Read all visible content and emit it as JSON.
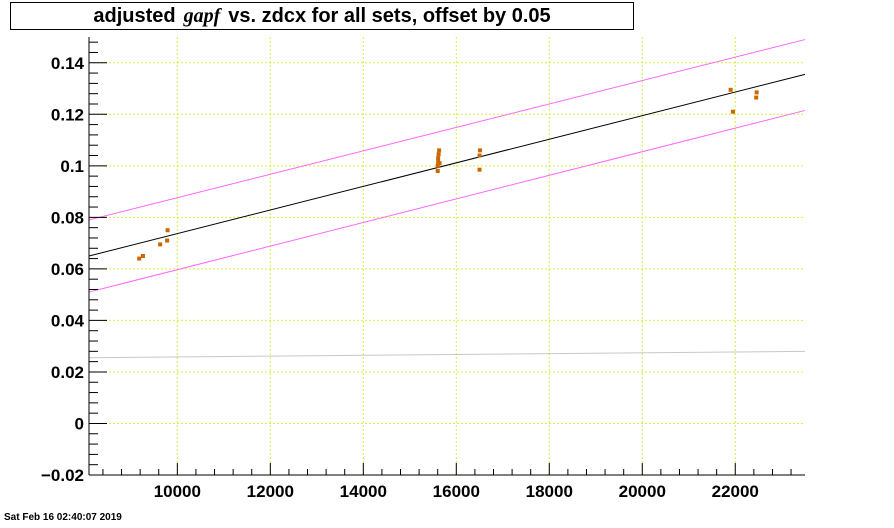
{
  "title": {
    "prefix": "adjusted",
    "italic": "gapf",
    "suffix": "vs. zdcx for all sets, offset by 0.05"
  },
  "footer": "Sat Feb 16 02:40:07 2019",
  "colors": {
    "grid": "#d4f03c",
    "fit": "#000000",
    "band": "#ff66ff",
    "reference": "#c8c8c8",
    "points": "#cc6600"
  },
  "chart_data": {
    "type": "scatter",
    "xlim": [
      8100,
      23500
    ],
    "ylim": [
      -0.02,
      0.15
    ],
    "grid": true,
    "x_ticks": [
      {
        "value": 10000,
        "label": "10000"
      },
      {
        "value": 12000,
        "label": "12000"
      },
      {
        "value": 14000,
        "label": "14000"
      },
      {
        "value": 16000,
        "label": "16000"
      },
      {
        "value": 18000,
        "label": "18000"
      },
      {
        "value": 20000,
        "label": "20000"
      },
      {
        "value": 22000,
        "label": "22000"
      }
    ],
    "y_ticks": [
      {
        "value": -0.02,
        "label": "−0.02"
      },
      {
        "value": 0,
        "label": "0"
      },
      {
        "value": 0.02,
        "label": "0.02"
      },
      {
        "value": 0.04,
        "label": "0.04"
      },
      {
        "value": 0.06,
        "label": "0.06"
      },
      {
        "value": 0.08,
        "label": "0.08"
      },
      {
        "value": 0.1,
        "label": "0.1"
      },
      {
        "value": 0.12,
        "label": "0.12"
      },
      {
        "value": 0.14,
        "label": "0.14"
      }
    ],
    "points": [
      {
        "x": 9180,
        "y": 0.064
      },
      {
        "x": 9260,
        "y": 0.065
      },
      {
        "x": 9630,
        "y": 0.0695
      },
      {
        "x": 9780,
        "y": 0.071
      },
      {
        "x": 9790,
        "y": 0.075
      },
      {
        "x": 15600,
        "y": 0.098
      },
      {
        "x": 15600,
        "y": 0.1
      },
      {
        "x": 15610,
        "y": 0.1015
      },
      {
        "x": 15610,
        "y": 0.103
      },
      {
        "x": 15620,
        "y": 0.1045
      },
      {
        "x": 15630,
        "y": 0.106
      },
      {
        "x": 15640,
        "y": 0.101
      },
      {
        "x": 16500,
        "y": 0.0985
      },
      {
        "x": 16500,
        "y": 0.104
      },
      {
        "x": 16510,
        "y": 0.106
      },
      {
        "x": 21900,
        "y": 0.1295
      },
      {
        "x": 21950,
        "y": 0.121
      },
      {
        "x": 22450,
        "y": 0.1265
      },
      {
        "x": 22460,
        "y": 0.1285
      }
    ],
    "lines": [
      {
        "role": "fit",
        "x": [
          8100,
          23500
        ],
        "y": [
          0.065,
          0.1355
        ]
      },
      {
        "role": "upper-band",
        "x": [
          8100,
          23500
        ],
        "y": [
          0.079,
          0.149
        ]
      },
      {
        "role": "lower-band",
        "x": [
          8100,
          23500
        ],
        "y": [
          0.051,
          0.1215
        ]
      },
      {
        "role": "reference",
        "x": [
          8100,
          23500
        ],
        "y": [
          0.0255,
          0.028
        ]
      }
    ]
  }
}
